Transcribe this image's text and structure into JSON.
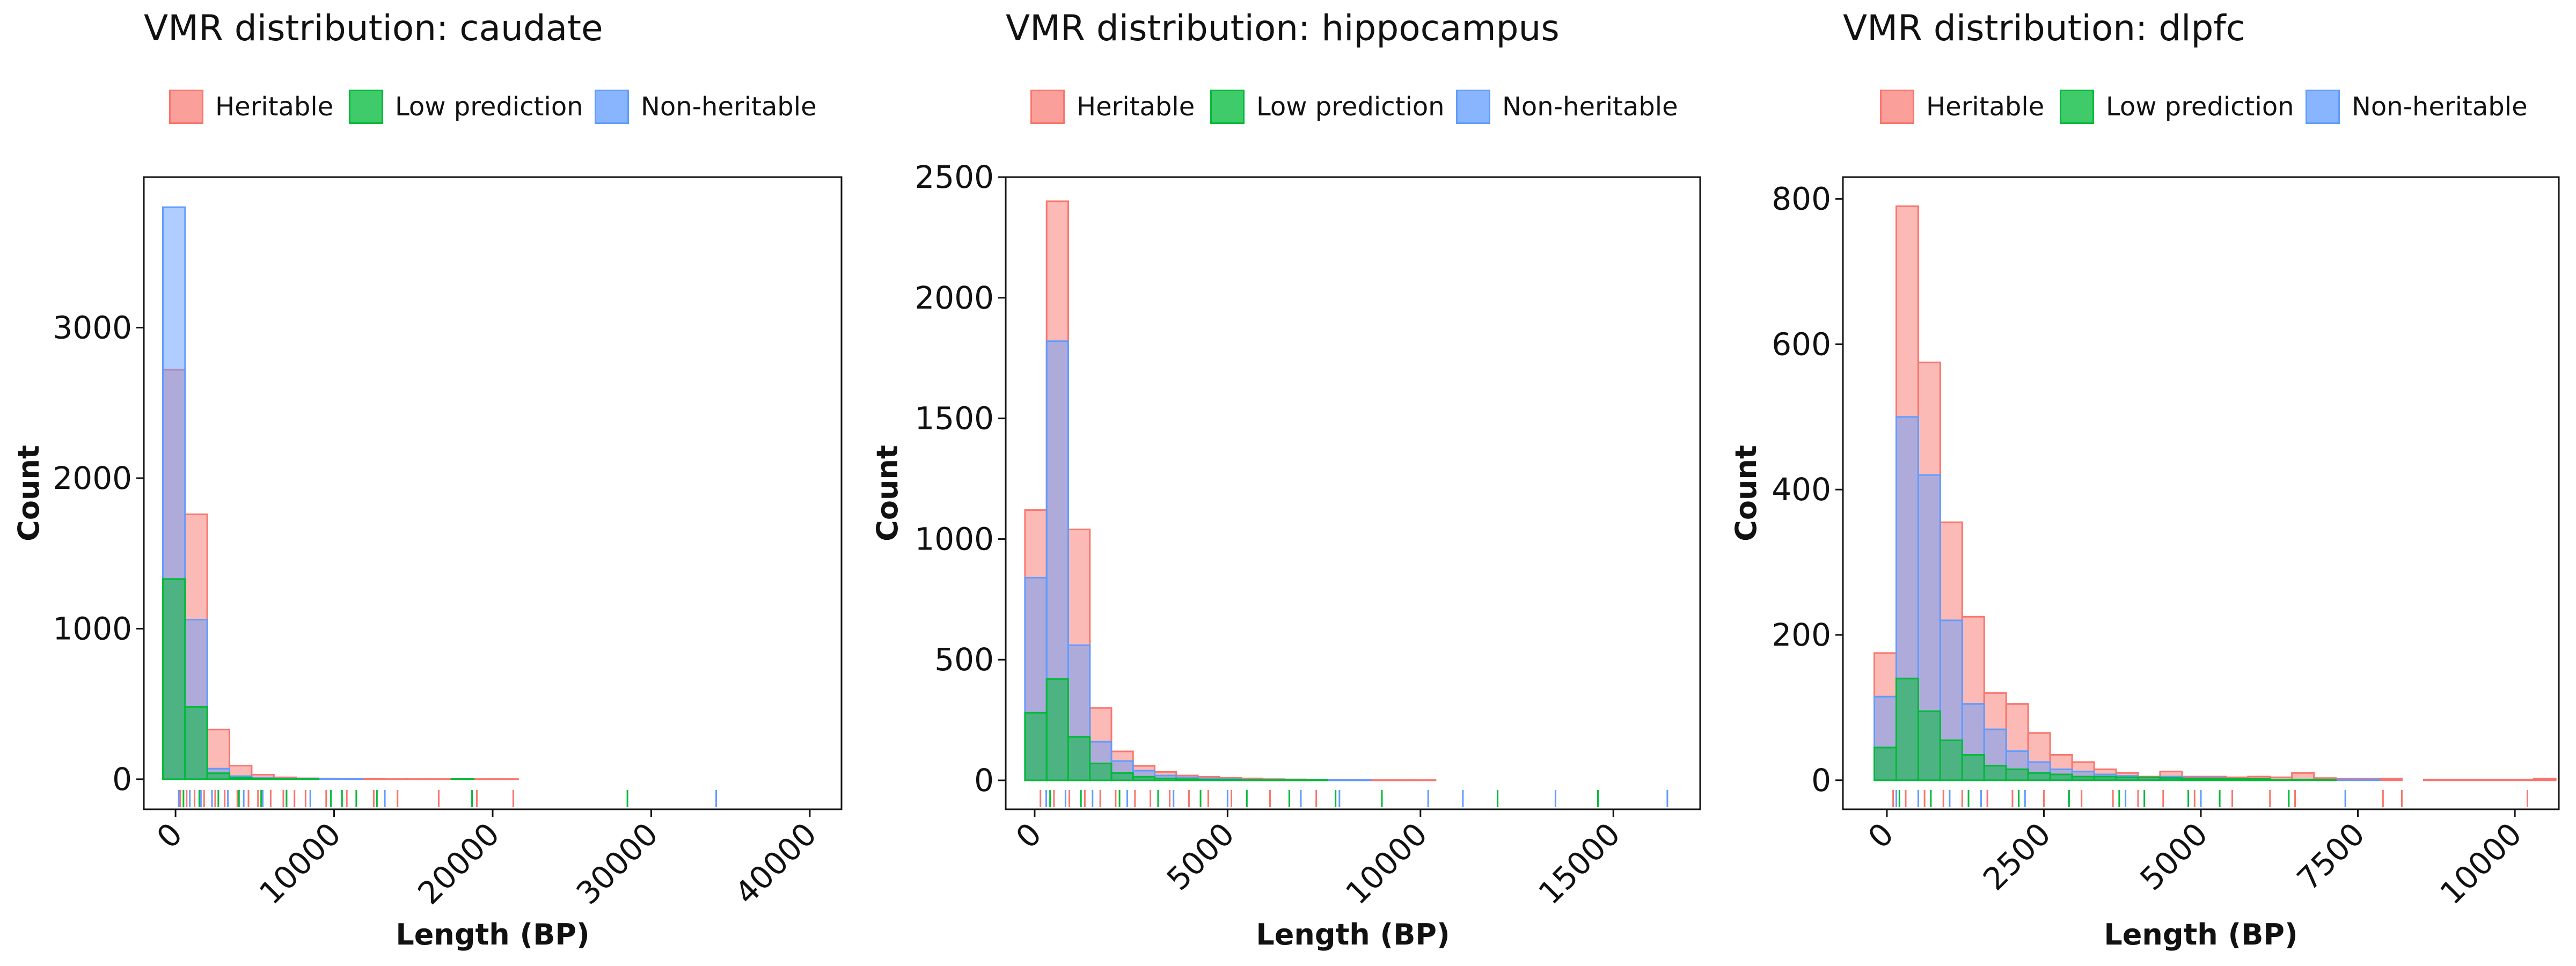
{
  "chart_data": [
    {
      "type": "histogram",
      "title": "VMR distribution: caudate",
      "xlabel": "Length (BP)",
      "ylabel": "Count",
      "xlim": [
        -2000,
        42000
      ],
      "ylim": [
        -200,
        4000
      ],
      "xticks": [
        0,
        10000,
        20000,
        30000,
        40000
      ],
      "yticks": [
        0,
        1000,
        2000,
        3000
      ],
      "bin_start": -800,
      "bin_width": 1400,
      "legend_position": "top",
      "grid": false,
      "series": [
        {
          "name": "Heritable",
          "color": "#F8766D",
          "counts": [
            2720,
            1760,
            330,
            90,
            30,
            12,
            6,
            3,
            2,
            2,
            1,
            1,
            1,
            1,
            1,
            1,
            0,
            0,
            0,
            0,
            0,
            0,
            0,
            0,
            0,
            0,
            0,
            0,
            0
          ],
          "rug": [
            300,
            700,
            1200,
            1800,
            2500,
            3100,
            3900,
            4600,
            5200,
            6000,
            6800,
            7500,
            8200,
            9500,
            10800,
            12500,
            14000,
            16600,
            19000,
            21300
          ]
        },
        {
          "name": "Low prediction",
          "color": "#00BA38",
          "counts": [
            1330,
            480,
            40,
            10,
            3,
            1,
            1,
            0,
            0,
            0,
            0,
            0,
            0,
            1,
            0,
            0,
            0,
            0,
            0,
            0,
            0,
            0,
            0,
            0,
            0,
            0,
            0,
            0,
            0
          ],
          "rug": [
            500,
            1500,
            2700,
            4000,
            5400,
            7000,
            9800,
            10500,
            11400,
            12700,
            18700,
            28500
          ]
        },
        {
          "name": "Non-heritable",
          "color": "#619CFF",
          "counts": [
            3800,
            1060,
            70,
            20,
            8,
            4,
            2,
            1,
            1,
            0,
            0,
            0,
            0,
            0,
            0,
            0,
            0,
            0,
            0,
            0,
            0,
            0,
            0,
            0,
            0,
            0,
            0,
            0,
            0
          ],
          "rug": [
            200,
            900,
            1600,
            2300,
            3300,
            4300,
            5500,
            7000,
            8500,
            13200,
            34100
          ]
        }
      ]
    },
    {
      "type": "histogram",
      "title": "VMR distribution: hippocampus",
      "xlabel": "Length (BP)",
      "ylabel": "Count",
      "xlim": [
        -750,
        17250
      ],
      "ylim": [
        -120,
        2500
      ],
      "xticks": [
        0,
        5000,
        10000,
        15000
      ],
      "yticks": [
        0,
        500,
        1000,
        1500,
        2000,
        2500
      ],
      "bin_start": -250,
      "bin_width": 560,
      "legend_position": "top",
      "grid": false,
      "series": [
        {
          "name": "Heritable",
          "color": "#F8766D",
          "counts": [
            1120,
            2400,
            1040,
            300,
            120,
            60,
            35,
            20,
            15,
            10,
            8,
            5,
            4,
            3,
            2,
            2,
            1,
            1,
            1,
            0,
            0,
            0,
            0,
            0,
            0,
            0,
            0,
            0,
            0,
            0
          ],
          "rug": [
            150,
            500,
            900,
            1300,
            1700,
            2100,
            2600,
            3000,
            3500,
            4000,
            4500,
            5100,
            6100,
            7300
          ]
        },
        {
          "name": "Low prediction",
          "color": "#00BA38",
          "counts": [
            280,
            420,
            180,
            70,
            30,
            15,
            8,
            5,
            3,
            2,
            1,
            1,
            1,
            1,
            0,
            0,
            0,
            0,
            0,
            0,
            0,
            0,
            0,
            0,
            0,
            0,
            0,
            0,
            0,
            0
          ],
          "rug": [
            400,
            1200,
            2200,
            3200,
            4300,
            5500,
            6600,
            7800,
            9000,
            12000,
            14600
          ]
        },
        {
          "name": "Non-heritable",
          "color": "#619CFF",
          "counts": [
            840,
            1820,
            560,
            160,
            80,
            40,
            20,
            12,
            8,
            5,
            3,
            2,
            2,
            1,
            1,
            1,
            0,
            0,
            0,
            0,
            0,
            0,
            0,
            0,
            0,
            0,
            0,
            0,
            0,
            0
          ],
          "rug": [
            300,
            800,
            1500,
            2400,
            3600,
            5000,
            6900,
            7900,
            10200,
            11100,
            13500,
            16400
          ]
        }
      ]
    },
    {
      "type": "histogram",
      "title": "VMR distribution: dlpfc",
      "xlabel": "Length (BP)",
      "ylabel": "Count",
      "xlim": [
        -700,
        10700
      ],
      "ylim": [
        -40,
        830
      ],
      "xticks": [
        0,
        2500,
        5000,
        7500,
        10000
      ],
      "yticks": [
        0,
        200,
        400,
        600,
        800
      ],
      "bin_start": -200,
      "bin_width": 350,
      "legend_position": "top",
      "grid": false,
      "series": [
        {
          "name": "Heritable",
          "color": "#F8766D",
          "counts": [
            175,
            790,
            575,
            355,
            225,
            120,
            105,
            65,
            35,
            25,
            15,
            10,
            5,
            12,
            5,
            5,
            4,
            5,
            4,
            10,
            3,
            2,
            2,
            2,
            0,
            1,
            1,
            1,
            1,
            1,
            2
          ],
          "rug": [
            100,
            300,
            600,
            900,
            1200,
            1600,
            2000,
            2500,
            3100,
            3600,
            4000,
            4400,
            4900,
            5500,
            6100,
            6500,
            7900,
            8200,
            10200
          ]
        },
        {
          "name": "Low prediction",
          "color": "#00BA38",
          "counts": [
            45,
            140,
            95,
            55,
            35,
            20,
            15,
            10,
            8,
            5,
            5,
            4,
            4,
            3,
            2,
            2,
            2,
            2,
            1,
            1,
            1,
            0,
            0,
            0,
            0,
            0,
            0,
            0,
            0,
            0,
            0
          ],
          "rug": [
            200,
            700,
            1300,
            2100,
            2900,
            3700,
            4100,
            4800,
            5300,
            6400
          ]
        },
        {
          "name": "Non-heritable",
          "color": "#619CFF",
          "counts": [
            115,
            500,
            420,
            220,
            105,
            70,
            40,
            25,
            15,
            12,
            8,
            6,
            4,
            5,
            3,
            3,
            2,
            2,
            1,
            1,
            1,
            1,
            1,
            0,
            0,
            0,
            0,
            0,
            0,
            0,
            0
          ],
          "rug": [
            150,
            500,
            1000,
            1500,
            2200,
            2900,
            3800,
            5000,
            7300
          ]
        }
      ]
    }
  ]
}
